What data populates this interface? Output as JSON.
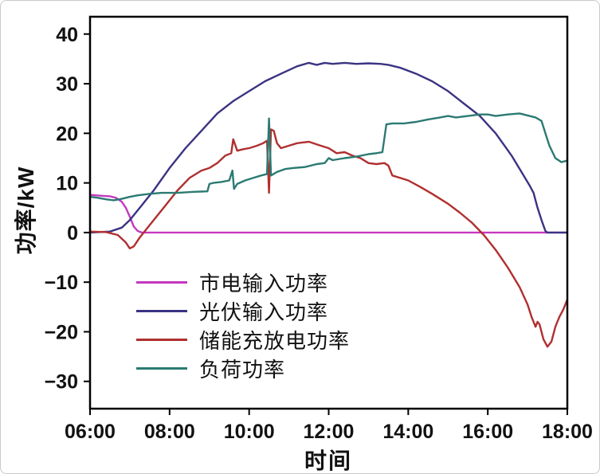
{
  "figure": {
    "background": "#ffffff",
    "frame_color": "#000000",
    "text_color": "#111111"
  },
  "chart_data": {
    "type": "line",
    "title": "",
    "xlabel": "时间",
    "ylabel": "功率/kW",
    "xlim": [
      6,
      18
    ],
    "ylim": [
      -35.5,
      43.5
    ],
    "x_tick_values": [
      6,
      8,
      10,
      12,
      14,
      16,
      18
    ],
    "x_ticks": [
      "06:00",
      "08:00",
      "10:00",
      "12:00",
      "14:00",
      "16:00",
      "18:00"
    ],
    "y_ticks": [
      -30,
      -20,
      -10,
      0,
      10,
      20,
      30,
      40
    ],
    "grid": false,
    "legend_position": "inside-lower-left",
    "series": [
      {
        "name": "市电输入功率",
        "color": "#c438c0",
        "points": [
          [
            6.0,
            7.6
          ],
          [
            6.15,
            7.5
          ],
          [
            6.3,
            7.4
          ],
          [
            6.5,
            7.3
          ],
          [
            6.65,
            7.0
          ],
          [
            6.8,
            6.2
          ],
          [
            6.9,
            5.0
          ],
          [
            7.0,
            3.2
          ],
          [
            7.1,
            1.2
          ],
          [
            7.2,
            0.3
          ],
          [
            7.3,
            0
          ],
          [
            18.0,
            0
          ]
        ]
      },
      {
        "name": "光伏输入功率",
        "color": "#3a3382",
        "points": [
          [
            6.0,
            0
          ],
          [
            6.5,
            0.2
          ],
          [
            6.8,
            1.0
          ],
          [
            7.0,
            2.5
          ],
          [
            7.3,
            5.5
          ],
          [
            7.6,
            8.5
          ],
          [
            8.0,
            13
          ],
          [
            8.4,
            17
          ],
          [
            8.8,
            20.5
          ],
          [
            9.2,
            24
          ],
          [
            9.6,
            26.5
          ],
          [
            10.0,
            28.5
          ],
          [
            10.4,
            30.5
          ],
          [
            10.8,
            32
          ],
          [
            11.2,
            33.5
          ],
          [
            11.5,
            34.2
          ],
          [
            11.7,
            33.8
          ],
          [
            11.9,
            34.2
          ],
          [
            12.1,
            34.0
          ],
          [
            12.4,
            34.2
          ],
          [
            12.7,
            34.0
          ],
          [
            13.0,
            34.1
          ],
          [
            13.3,
            34.0
          ],
          [
            13.5,
            33.8
          ],
          [
            13.8,
            33.2
          ],
          [
            14.2,
            32.0
          ],
          [
            14.6,
            30.5
          ],
          [
            15.0,
            28.5
          ],
          [
            15.4,
            26.0
          ],
          [
            15.8,
            23.5
          ],
          [
            16.2,
            20.0
          ],
          [
            16.6,
            15.5
          ],
          [
            16.9,
            11.5
          ],
          [
            17.05,
            9.5
          ],
          [
            17.15,
            8.0
          ],
          [
            17.25,
            5.0
          ],
          [
            17.35,
            2.5
          ],
          [
            17.45,
            0.3
          ],
          [
            17.5,
            0
          ],
          [
            18.0,
            0
          ]
        ]
      },
      {
        "name": "储能充放电功率",
        "color": "#b02f2f",
        "points": [
          [
            6.0,
            0.2
          ],
          [
            6.4,
            0.1
          ],
          [
            6.7,
            -0.5
          ],
          [
            6.9,
            -2.0
          ],
          [
            7.0,
            -3.2
          ],
          [
            7.1,
            -2.8
          ],
          [
            7.25,
            -1.0
          ],
          [
            7.4,
            0.5
          ],
          [
            7.6,
            2.5
          ],
          [
            7.9,
            5.5
          ],
          [
            8.2,
            8.5
          ],
          [
            8.5,
            11.0
          ],
          [
            8.8,
            12.5
          ],
          [
            9.0,
            13.0
          ],
          [
            9.2,
            14.0
          ],
          [
            9.4,
            15.5
          ],
          [
            9.55,
            16.0
          ],
          [
            9.6,
            18.8
          ],
          [
            9.7,
            16.5
          ],
          [
            9.85,
            16.8
          ],
          [
            10.0,
            17.0
          ],
          [
            10.2,
            17.5
          ],
          [
            10.35,
            18.0
          ],
          [
            10.45,
            18.5
          ],
          [
            10.5,
            8.0
          ],
          [
            10.55,
            20.8
          ],
          [
            10.62,
            20.5
          ],
          [
            10.7,
            18.0
          ],
          [
            10.8,
            17.0
          ],
          [
            11.0,
            17.5
          ],
          [
            11.2,
            18.0
          ],
          [
            11.5,
            18.3
          ],
          [
            11.8,
            17.5
          ],
          [
            12.0,
            17.0
          ],
          [
            12.2,
            16.0
          ],
          [
            12.4,
            16.2
          ],
          [
            12.6,
            15.5
          ],
          [
            12.8,
            15.0
          ],
          [
            13.0,
            14.0
          ],
          [
            13.2,
            13.8
          ],
          [
            13.4,
            14.0
          ],
          [
            13.5,
            13.5
          ],
          [
            13.6,
            11.5
          ],
          [
            13.8,
            11.0
          ],
          [
            14.0,
            10.5
          ],
          [
            14.3,
            9.2
          ],
          [
            14.6,
            7.8
          ],
          [
            15.0,
            5.8
          ],
          [
            15.3,
            4.0
          ],
          [
            15.6,
            2.0
          ],
          [
            15.9,
            -0.5
          ],
          [
            16.2,
            -3.5
          ],
          [
            16.5,
            -7.0
          ],
          [
            16.8,
            -11.0
          ],
          [
            17.0,
            -14.5
          ],
          [
            17.1,
            -17.0
          ],
          [
            17.2,
            -19.0
          ],
          [
            17.25,
            -18.0
          ],
          [
            17.3,
            -18.5
          ],
          [
            17.4,
            -21.5
          ],
          [
            17.5,
            -23.0
          ],
          [
            17.6,
            -22.0
          ],
          [
            17.7,
            -19.0
          ],
          [
            17.8,
            -17.0
          ],
          [
            17.9,
            -15.5
          ],
          [
            18.0,
            -13.5
          ]
        ]
      },
      {
        "name": "负荷功率",
        "color": "#2b7a72",
        "points": [
          [
            6.0,
            7.2
          ],
          [
            6.2,
            7.0
          ],
          [
            6.4,
            6.7
          ],
          [
            6.6,
            6.5
          ],
          [
            6.8,
            6.8
          ],
          [
            7.0,
            7.2
          ],
          [
            7.2,
            7.5
          ],
          [
            7.5,
            7.8
          ],
          [
            7.8,
            8.0
          ],
          [
            8.2,
            8.0
          ],
          [
            8.6,
            8.2
          ],
          [
            8.95,
            8.3
          ],
          [
            9.0,
            9.8
          ],
          [
            9.1,
            10.0
          ],
          [
            9.3,
            10.2
          ],
          [
            9.5,
            10.5
          ],
          [
            9.58,
            12.5
          ],
          [
            9.62,
            8.8
          ],
          [
            9.7,
            9.8
          ],
          [
            9.9,
            10.5
          ],
          [
            10.1,
            11.0
          ],
          [
            10.3,
            11.5
          ],
          [
            10.45,
            11.8
          ],
          [
            10.5,
            23.0
          ],
          [
            10.55,
            11.5
          ],
          [
            10.7,
            12.2
          ],
          [
            10.9,
            12.8
          ],
          [
            11.1,
            13.0
          ],
          [
            11.4,
            13.2
          ],
          [
            11.7,
            13.8
          ],
          [
            11.9,
            14.0
          ],
          [
            12.0,
            15.0
          ],
          [
            12.1,
            14.6
          ],
          [
            12.4,
            15.0
          ],
          [
            12.7,
            15.3
          ],
          [
            13.0,
            15.8
          ],
          [
            13.2,
            16.0
          ],
          [
            13.35,
            16.2
          ],
          [
            13.45,
            21.8
          ],
          [
            13.6,
            22.0
          ],
          [
            13.9,
            22.0
          ],
          [
            14.2,
            22.3
          ],
          [
            14.5,
            22.8
          ],
          [
            14.8,
            23.2
          ],
          [
            15.0,
            23.5
          ],
          [
            15.2,
            23.2
          ],
          [
            15.5,
            23.5
          ],
          [
            15.8,
            23.8
          ],
          [
            16.0,
            23.8
          ],
          [
            16.2,
            23.5
          ],
          [
            16.5,
            23.8
          ],
          [
            16.8,
            24.0
          ],
          [
            17.0,
            23.6
          ],
          [
            17.2,
            23.2
          ],
          [
            17.35,
            22.5
          ],
          [
            17.45,
            20.0
          ],
          [
            17.55,
            17.5
          ],
          [
            17.7,
            15.0
          ],
          [
            17.85,
            14.2
          ],
          [
            18.0,
            14.5
          ]
        ]
      }
    ]
  }
}
